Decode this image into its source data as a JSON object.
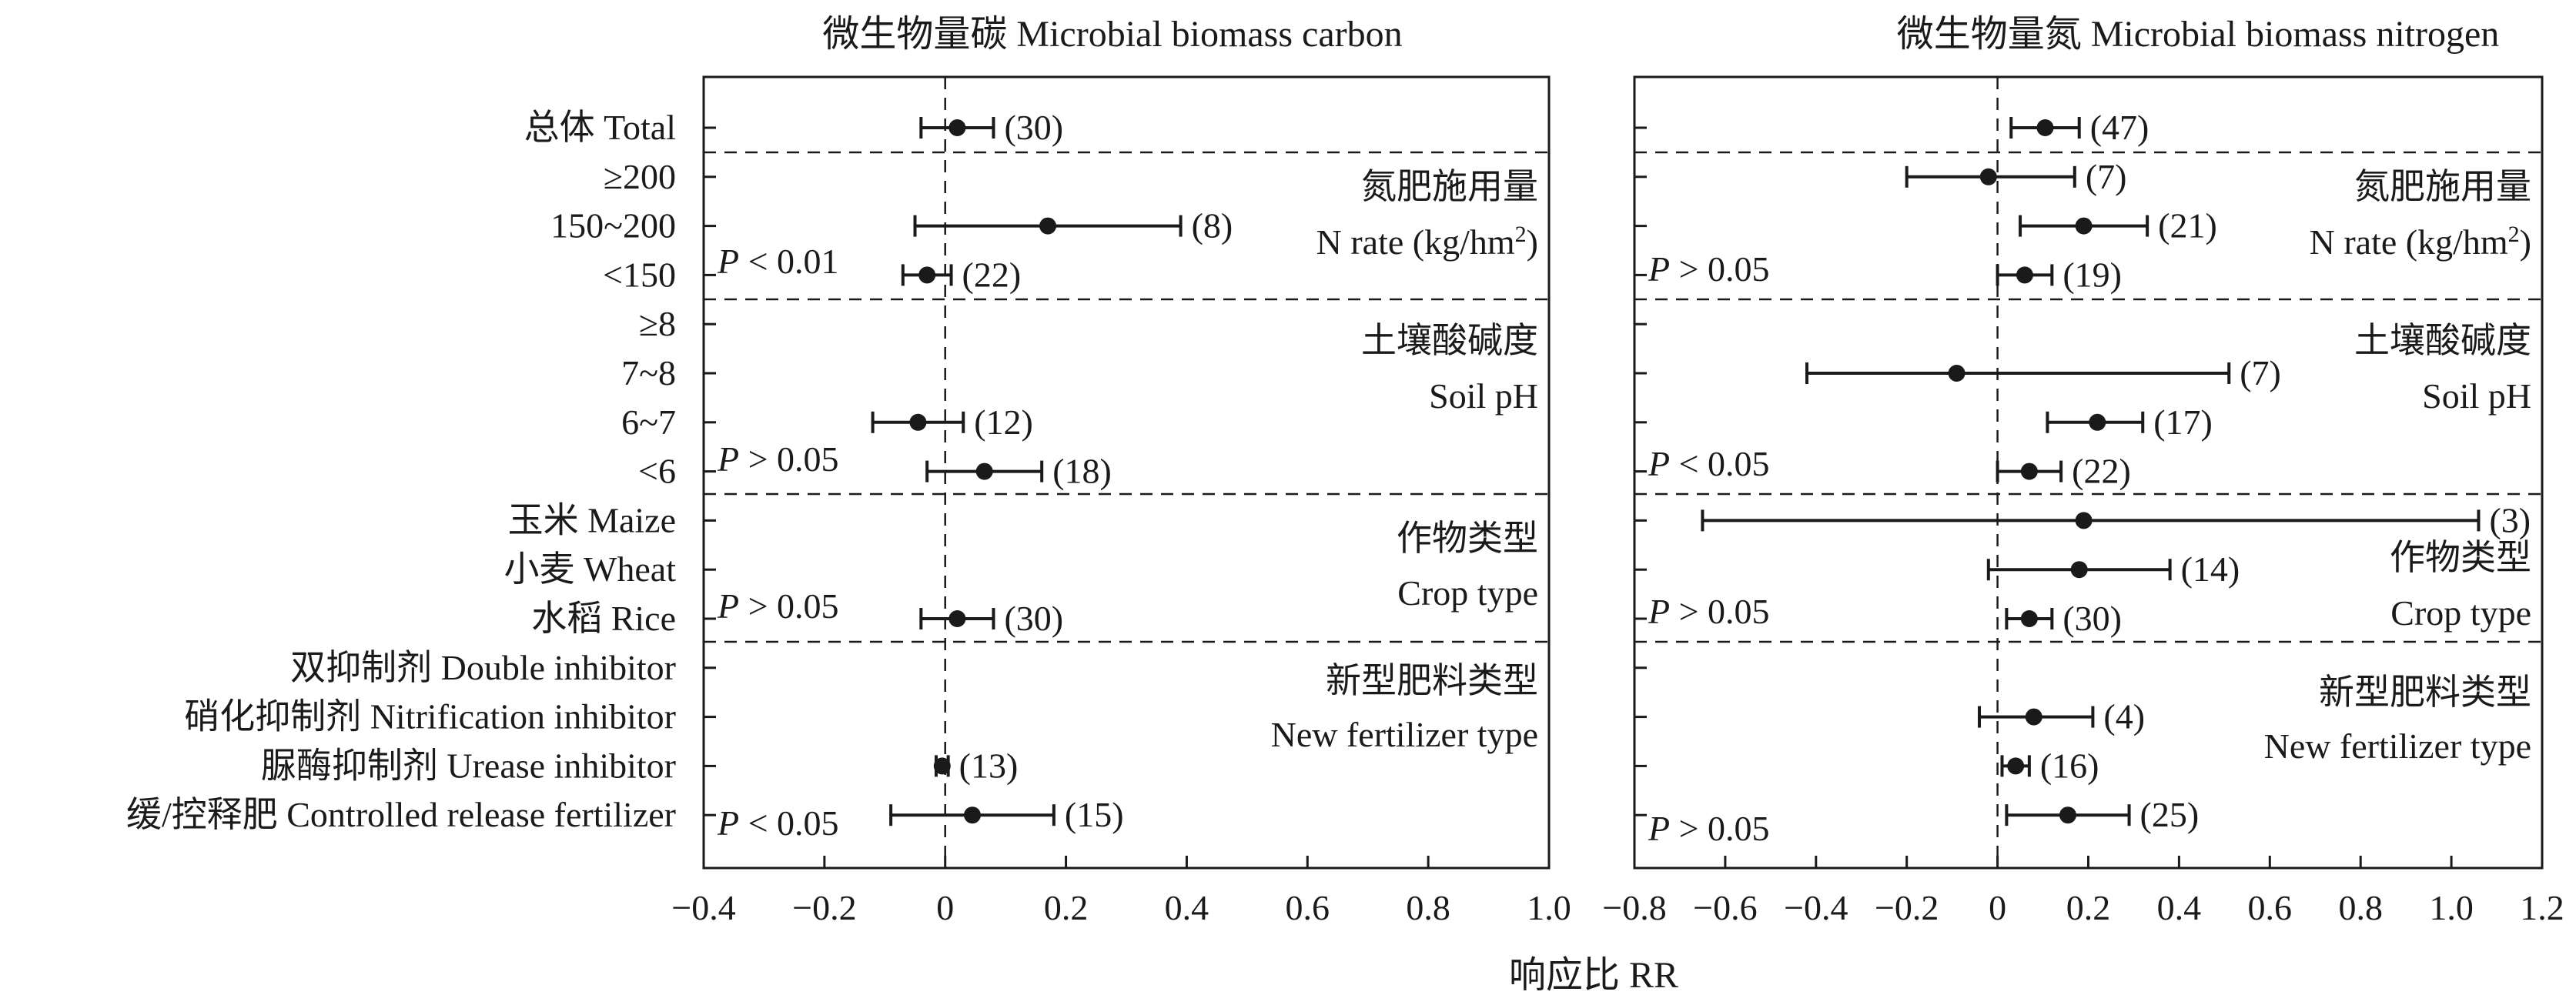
{
  "figure": {
    "xlabel": "响应比 RR",
    "category_labels": [
      "总体 Total",
      "≥200",
      "150~200",
      "<150",
      "≥8",
      "7~8",
      "6~7",
      "<6",
      "玉米 Maize",
      "小麦 Wheat",
      "水稻 Rice",
      "双抑制剂 Double inhibitor",
      "硝化抑制剂 Nitrification inhibitor",
      "脲酶抑制剂 Urease inhibitor",
      "缓/控释肥 Controlled release fertilizer"
    ],
    "group_labels": [
      {
        "zh": "氮肥施用量",
        "en": "N rate (kg/hm",
        "sup": "2",
        "close": ")"
      },
      {
        "zh": "土壤酸碱度",
        "en": "Soil pH"
      },
      {
        "zh": "作物类型",
        "en": "Crop type"
      },
      {
        "zh": "新型肥料类型",
        "en": "New fertilizer type"
      }
    ]
  },
  "chart_data": [
    {
      "type": "forest",
      "title": "微生物量碳 Microbial biomass carbon",
      "xlim": [
        -0.4,
        1.0
      ],
      "xticks": [
        "−0.4",
        "−0.2",
        "0",
        "0.2",
        "0.4",
        "0.6",
        "0.8",
        "1.0"
      ],
      "tick_values": [
        -0.4,
        -0.2,
        0,
        0.2,
        0.4,
        0.6,
        0.8,
        1.0
      ],
      "reference_line": 0,
      "points": [
        {
          "row": 0,
          "est": 0.02,
          "lo": -0.04,
          "hi": 0.08,
          "n": "(30)"
        },
        {
          "row": 2,
          "est": 0.17,
          "lo": -0.05,
          "hi": 0.39,
          "n": "(8)"
        },
        {
          "row": 3,
          "est": -0.03,
          "lo": -0.07,
          "hi": 0.01,
          "n": "(22)"
        },
        {
          "row": 6,
          "est": -0.045,
          "lo": -0.12,
          "hi": 0.03,
          "n": "(12)"
        },
        {
          "row": 7,
          "est": 0.065,
          "lo": -0.03,
          "hi": 0.16,
          "n": "(18)"
        },
        {
          "row": 10,
          "est": 0.02,
          "lo": -0.04,
          "hi": 0.08,
          "n": "(30)"
        },
        {
          "row": 13,
          "est": -0.005,
          "lo": -0.015,
          "hi": 0.005,
          "n": "(13)"
        },
        {
          "row": 14,
          "est": 0.045,
          "lo": -0.09,
          "hi": 0.18,
          "n": "(15)"
        }
      ],
      "p_values": [
        "P < 0.01",
        "P > 0.05",
        "P > 0.05",
        "P < 0.05"
      ]
    },
    {
      "type": "forest",
      "title": "微生物量氮 Microbial biomass nitrogen",
      "xlim": [
        -0.8,
        1.2
      ],
      "xticks": [
        "−0.8",
        "−0.6",
        "−0.4",
        "−0.2",
        "0",
        "0.2",
        "0.4",
        "0.6",
        "0.8",
        "1.0",
        "1.2"
      ],
      "tick_values": [
        -0.8,
        -0.6,
        -0.4,
        -0.2,
        0,
        0.2,
        0.4,
        0.6,
        0.8,
        1.0,
        1.2
      ],
      "reference_line": 0,
      "points": [
        {
          "row": 0,
          "est": 0.105,
          "lo": 0.03,
          "hi": 0.18,
          "n": "(47)"
        },
        {
          "row": 1,
          "est": -0.02,
          "lo": -0.2,
          "hi": 0.17,
          "n": "(7)"
        },
        {
          "row": 2,
          "est": 0.19,
          "lo": 0.05,
          "hi": 0.33,
          "n": "(21)"
        },
        {
          "row": 3,
          "est": 0.06,
          "lo": 0.0,
          "hi": 0.12,
          "n": "(19)"
        },
        {
          "row": 5,
          "est": -0.09,
          "lo": -0.42,
          "hi": 0.51,
          "n": "(7)"
        },
        {
          "row": 6,
          "est": 0.22,
          "lo": 0.11,
          "hi": 0.32,
          "n": "(17)"
        },
        {
          "row": 7,
          "est": 0.07,
          "lo": 0.0,
          "hi": 0.14,
          "n": "(22)"
        },
        {
          "row": 8,
          "est": 0.19,
          "lo": -0.65,
          "hi": 1.06,
          "n": "(3)"
        },
        {
          "row": 9,
          "est": 0.18,
          "lo": -0.02,
          "hi": 0.38,
          "n": "(14)"
        },
        {
          "row": 10,
          "est": 0.07,
          "lo": 0.02,
          "hi": 0.12,
          "n": "(30)"
        },
        {
          "row": 12,
          "est": 0.08,
          "lo": -0.04,
          "hi": 0.21,
          "n": "(4)"
        },
        {
          "row": 13,
          "est": 0.04,
          "lo": 0.01,
          "hi": 0.07,
          "n": "(16)"
        },
        {
          "row": 14,
          "est": 0.155,
          "lo": 0.02,
          "hi": 0.29,
          "n": "(25)"
        }
      ],
      "p_values": [
        "P > 0.05",
        "P < 0.05",
        "P > 0.05",
        "P > 0.05"
      ]
    }
  ]
}
